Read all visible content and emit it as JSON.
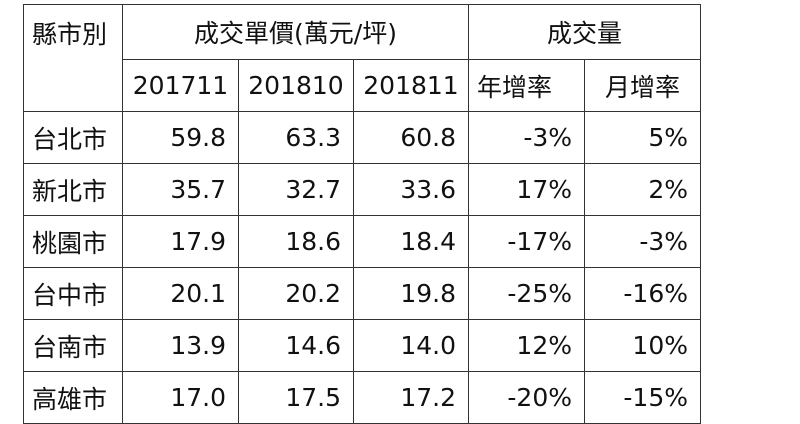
{
  "header": {
    "region": "縣市別",
    "price_group": "成交單價(萬元/坪)",
    "volume_group": "成交量",
    "periods": [
      "201711",
      "201810",
      "201811"
    ],
    "yoy": "年增率",
    "mom": "月增率"
  },
  "rows": [
    {
      "city": "台北市",
      "p1": "59.8",
      "p2": "63.3",
      "p3": "60.8",
      "yoy": "-3%",
      "mom": "5%"
    },
    {
      "city": "新北市",
      "p1": "35.7",
      "p2": "32.7",
      "p3": "33.6",
      "yoy": "17%",
      "mom": "2%"
    },
    {
      "city": "桃園市",
      "p1": "17.9",
      "p2": "18.6",
      "p3": "18.4",
      "yoy": "-17%",
      "mom": "-3%"
    },
    {
      "city": "台中市",
      "p1": "20.1",
      "p2": "20.2",
      "p3": "19.8",
      "yoy": "-25%",
      "mom": "-16%"
    },
    {
      "city": "台南市",
      "p1": "13.9",
      "p2": "14.6",
      "p3": "14.0",
      "yoy": "12%",
      "mom": "10%"
    },
    {
      "city": "高雄市",
      "p1": "17.0",
      "p2": "17.5",
      "p3": "17.2",
      "yoy": "-20%",
      "mom": "-15%"
    }
  ]
}
